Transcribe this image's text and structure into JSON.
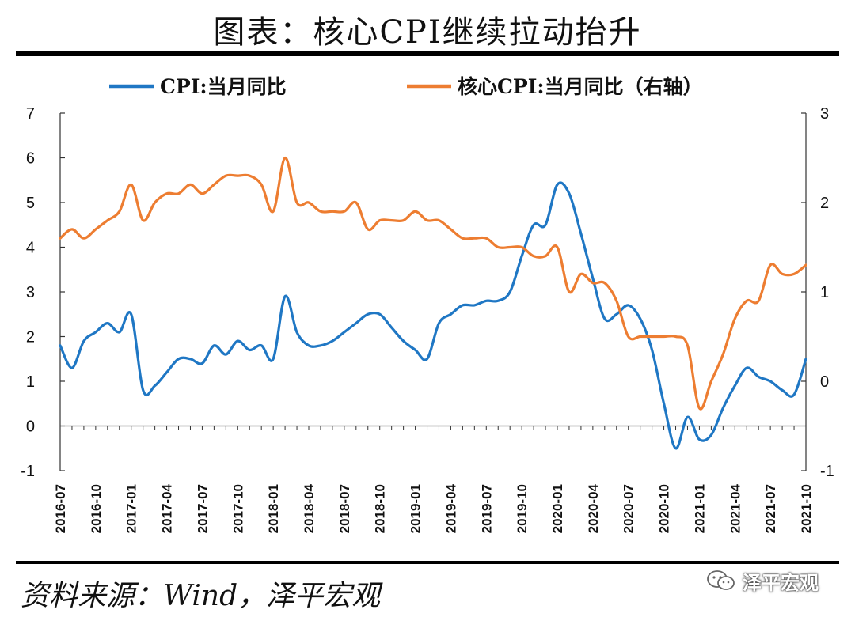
{
  "title": "图表：核心CPI继续拉动抬升",
  "source": "资料来源：Wind，泽平宏观",
  "watermark": {
    "text": "泽平宏观",
    "icon": "wechat-icon"
  },
  "chart_data": {
    "type": "line",
    "x_ticks": [
      "2016-07",
      "2016-10",
      "2017-01",
      "2017-04",
      "2017-07",
      "2017-10",
      "2018-01",
      "2018-04",
      "2018-07",
      "2018-10",
      "2019-01",
      "2019-04",
      "2019-07",
      "2019-10",
      "2020-01",
      "2020-04",
      "2020-07",
      "2020-10",
      "2021-01",
      "2021-04",
      "2021-07",
      "2021-10"
    ],
    "x": [
      "2016-07",
      "2016-08",
      "2016-09",
      "2016-10",
      "2016-11",
      "2016-12",
      "2017-01",
      "2017-02",
      "2017-03",
      "2017-04",
      "2017-05",
      "2017-06",
      "2017-07",
      "2017-08",
      "2017-09",
      "2017-10",
      "2017-11",
      "2017-12",
      "2018-01",
      "2018-02",
      "2018-03",
      "2018-04",
      "2018-05",
      "2018-06",
      "2018-07",
      "2018-08",
      "2018-09",
      "2018-10",
      "2018-11",
      "2018-12",
      "2019-01",
      "2019-02",
      "2019-03",
      "2019-04",
      "2019-05",
      "2019-06",
      "2019-07",
      "2019-08",
      "2019-09",
      "2019-10",
      "2019-11",
      "2019-12",
      "2020-01",
      "2020-02",
      "2020-03",
      "2020-04",
      "2020-05",
      "2020-06",
      "2020-07",
      "2020-08",
      "2020-09",
      "2020-10",
      "2020-11",
      "2020-12",
      "2021-01",
      "2021-02",
      "2021-03",
      "2021-04",
      "2021-05",
      "2021-06",
      "2021-07",
      "2021-08",
      "2021-09",
      "2021-10"
    ],
    "series": [
      {
        "name": "CPI:当月同比",
        "axis": "left",
        "color": "#1f77c4",
        "values": [
          1.8,
          1.3,
          1.9,
          2.1,
          2.3,
          2.1,
          2.5,
          0.8,
          0.9,
          1.2,
          1.5,
          1.5,
          1.4,
          1.8,
          1.6,
          1.9,
          1.7,
          1.8,
          1.5,
          2.9,
          2.1,
          1.8,
          1.8,
          1.9,
          2.1,
          2.3,
          2.5,
          2.5,
          2.2,
          1.9,
          1.7,
          1.5,
          2.3,
          2.5,
          2.7,
          2.7,
          2.8,
          2.8,
          3.0,
          3.8,
          4.5,
          4.5,
          5.4,
          5.2,
          4.3,
          3.3,
          2.4,
          2.5,
          2.7,
          2.4,
          1.7,
          0.5,
          -0.5,
          0.2,
          -0.3,
          -0.2,
          0.4,
          0.9,
          1.3,
          1.1,
          1.0,
          0.8,
          0.7,
          1.5
        ]
      },
      {
        "name": "核心CPI:当月同比（右轴）",
        "axis": "right",
        "color": "#ed7d31",
        "values": [
          1.6,
          1.7,
          1.6,
          1.7,
          1.8,
          1.9,
          2.2,
          1.8,
          2.0,
          2.1,
          2.1,
          2.2,
          2.1,
          2.2,
          2.3,
          2.3,
          2.3,
          2.2,
          1.9,
          2.5,
          2.0,
          2.0,
          1.9,
          1.9,
          1.9,
          2.0,
          1.7,
          1.8,
          1.8,
          1.8,
          1.9,
          1.8,
          1.8,
          1.7,
          1.6,
          1.6,
          1.6,
          1.5,
          1.5,
          1.5,
          1.4,
          1.4,
          1.5,
          1.0,
          1.2,
          1.1,
          1.1,
          0.9,
          0.5,
          0.5,
          0.5,
          0.5,
          0.5,
          0.4,
          -0.3,
          0.0,
          0.3,
          0.7,
          0.9,
          0.9,
          1.3,
          1.2,
          1.2,
          1.3
        ]
      }
    ],
    "y_left": {
      "min": -1,
      "max": 7,
      "ticks": [
        7,
        6,
        5,
        4,
        3,
        2,
        1,
        0,
        -1
      ]
    },
    "y_right": {
      "min": -1,
      "max": 3,
      "ticks": [
        3,
        2,
        1,
        0,
        -1
      ]
    },
    "grid": false,
    "legend_position": "top"
  }
}
